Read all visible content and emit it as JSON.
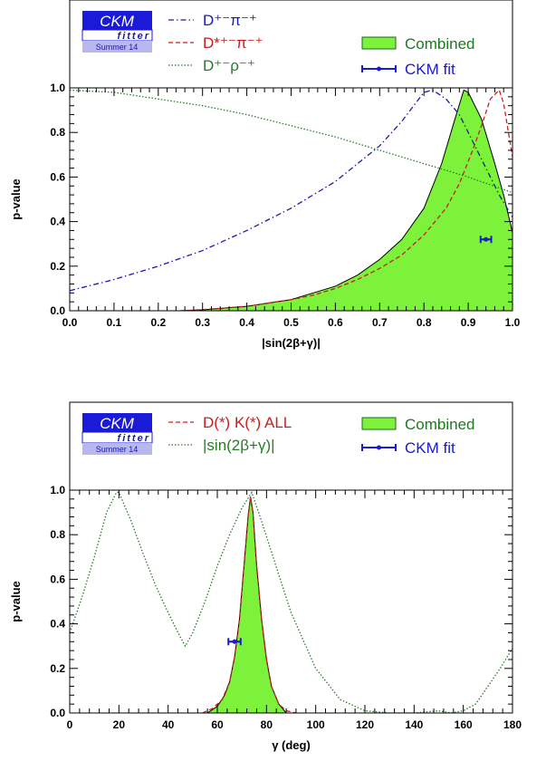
{
  "chart_data": [
    {
      "type": "line",
      "logo": {
        "main": "CKM",
        "sub": "fitter",
        "edition": "Summer 14"
      },
      "xlabel": "|sin(2β+γ)|",
      "ylabel": "p-value",
      "xlim": [
        0,
        1
      ],
      "ylim": [
        0,
        1
      ],
      "x_ticks": [
        "0.0",
        "0.1",
        "0.2",
        "0.3",
        "0.4",
        "0.5",
        "0.6",
        "0.7",
        "0.8",
        "0.9",
        "1.0"
      ],
      "y_ticks": [
        "0.0",
        "0.2",
        "0.4",
        "0.6",
        "0.8",
        "1.0"
      ],
      "series": [
        {
          "name": "D⁺⁻π⁻⁺",
          "style": "dash-dot",
          "color": "#1a1ab4",
          "x": [
            0.0,
            0.1,
            0.2,
            0.3,
            0.4,
            0.5,
            0.6,
            0.7,
            0.75,
            0.8,
            0.82,
            0.85,
            0.88,
            0.9,
            0.92,
            0.95,
            0.97,
            1.0
          ],
          "y": [
            0.09,
            0.14,
            0.2,
            0.27,
            0.36,
            0.46,
            0.58,
            0.74,
            0.85,
            0.98,
            0.99,
            0.95,
            0.88,
            0.8,
            0.72,
            0.6,
            0.52,
            0.42
          ]
        },
        {
          "name": "D*⁺⁻π⁻⁺",
          "style": "dashed",
          "color": "#c81e1e",
          "x": [
            0.25,
            0.3,
            0.4,
            0.5,
            0.55,
            0.6,
            0.65,
            0.7,
            0.75,
            0.8,
            0.85,
            0.88,
            0.91,
            0.93,
            0.95,
            0.97,
            0.98,
            1.0
          ],
          "y": [
            0.0,
            0.005,
            0.02,
            0.05,
            0.07,
            0.1,
            0.14,
            0.19,
            0.25,
            0.34,
            0.46,
            0.57,
            0.72,
            0.83,
            0.95,
            0.99,
            0.93,
            0.69
          ]
        },
        {
          "name": "D⁺⁻ρ⁻⁺",
          "style": "dotted",
          "color": "#2a7a2a",
          "x": [
            0.0,
            0.1,
            0.2,
            0.3,
            0.4,
            0.5,
            0.6,
            0.7,
            0.8,
            0.9,
            1.0
          ],
          "y": [
            0.99,
            0.98,
            0.95,
            0.92,
            0.88,
            0.83,
            0.78,
            0.72,
            0.66,
            0.6,
            0.53
          ]
        },
        {
          "name": "Combined",
          "style": "filled",
          "color": "#7df23a",
          "x": [
            0.25,
            0.3,
            0.4,
            0.5,
            0.55,
            0.6,
            0.65,
            0.7,
            0.75,
            0.8,
            0.84,
            0.87,
            0.89,
            0.9,
            0.93,
            0.96,
            0.98,
            1.0
          ],
          "y": [
            0.0,
            0.004,
            0.02,
            0.05,
            0.08,
            0.11,
            0.16,
            0.23,
            0.32,
            0.46,
            0.66,
            0.86,
            0.99,
            0.98,
            0.86,
            0.66,
            0.52,
            0.35
          ]
        },
        {
          "name": "CKM fit",
          "style": "errorbar",
          "color": "#1a1ad0",
          "x": [
            0.94
          ],
          "y": [
            0.32
          ],
          "xerr": [
            0.012
          ]
        }
      ]
    },
    {
      "type": "line",
      "logo": {
        "main": "CKM",
        "sub": "fitter",
        "edition": "Summer 14"
      },
      "xlabel": "γ  (deg)",
      "ylabel": "p-value",
      "xlim": [
        0,
        180
      ],
      "ylim": [
        0,
        1
      ],
      "x_ticks": [
        "0",
        "20",
        "40",
        "60",
        "80",
        "100",
        "120",
        "140",
        "160",
        "180"
      ],
      "y_ticks": [
        "0.0",
        "0.2",
        "0.4",
        "0.6",
        "0.8",
        "1.0"
      ],
      "series": [
        {
          "name": "D(*) K(*) ALL",
          "style": "dashed",
          "color": "#c81e1e",
          "x": [
            54,
            58,
            62,
            65,
            67,
            69,
            71,
            72.5,
            73.5,
            74.5,
            76,
            78,
            80,
            82,
            85,
            88,
            92
          ],
          "y": [
            0.0,
            0.02,
            0.06,
            0.14,
            0.25,
            0.42,
            0.68,
            0.88,
            0.97,
            0.9,
            0.66,
            0.42,
            0.24,
            0.12,
            0.04,
            0.01,
            0.0
          ]
        },
        {
          "name": "|sin(2β+γ)|",
          "style": "dotted",
          "color": "#2a7a2a",
          "x": [
            0,
            5,
            10,
            15,
            19,
            20,
            25,
            30,
            35,
            40,
            45,
            47,
            50,
            55,
            60,
            65,
            70,
            74,
            78,
            85,
            90,
            100,
            110,
            120,
            130,
            140,
            150,
            155,
            160,
            165,
            170,
            175,
            180
          ],
          "y": [
            0.36,
            0.52,
            0.7,
            0.9,
            0.99,
            0.99,
            0.86,
            0.71,
            0.57,
            0.45,
            0.34,
            0.3,
            0.36,
            0.5,
            0.66,
            0.8,
            0.92,
            0.99,
            0.86,
            0.62,
            0.45,
            0.2,
            0.06,
            0.01,
            0.0,
            0.0,
            0.01,
            0.0,
            0.01,
            0.04,
            0.12,
            0.2,
            0.29
          ]
        },
        {
          "name": "Combined",
          "style": "filled",
          "color": "#7df23a",
          "x": [
            56,
            60,
            63,
            65,
            67,
            69,
            71,
            72.5,
            73.5,
            74.5,
            76,
            78,
            80,
            82,
            85,
            88
          ],
          "y": [
            0.0,
            0.03,
            0.08,
            0.14,
            0.25,
            0.42,
            0.68,
            0.88,
            0.97,
            0.9,
            0.66,
            0.42,
            0.24,
            0.12,
            0.04,
            0.0
          ]
        },
        {
          "name": "CKM fit",
          "style": "errorbar",
          "color": "#1a1ad0",
          "x": [
            67
          ],
          "y": [
            0.32
          ],
          "xerr": [
            2.5
          ]
        }
      ]
    }
  ]
}
